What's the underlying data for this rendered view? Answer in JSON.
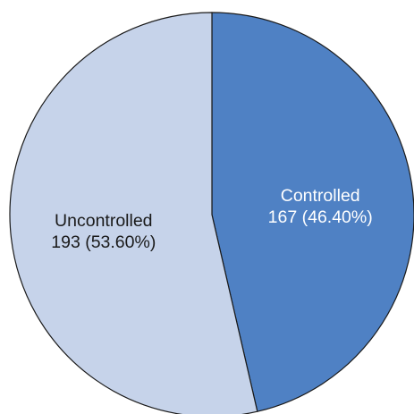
{
  "chart_data": {
    "type": "pie",
    "start_angle_deg": 0,
    "direction": "clockwise",
    "slices": [
      {
        "name": "Controlled",
        "count": 167,
        "percent": 46.4,
        "value_label": "167 (46.40%)",
        "color": "#4f81c4",
        "label_color": "#ffffff"
      },
      {
        "name": "Uncontrolled",
        "count": 193,
        "percent": 53.6,
        "value_label": "193 (53.60%)",
        "color": "#c6d3ea",
        "label_color": "#1a1a1a"
      }
    ]
  }
}
